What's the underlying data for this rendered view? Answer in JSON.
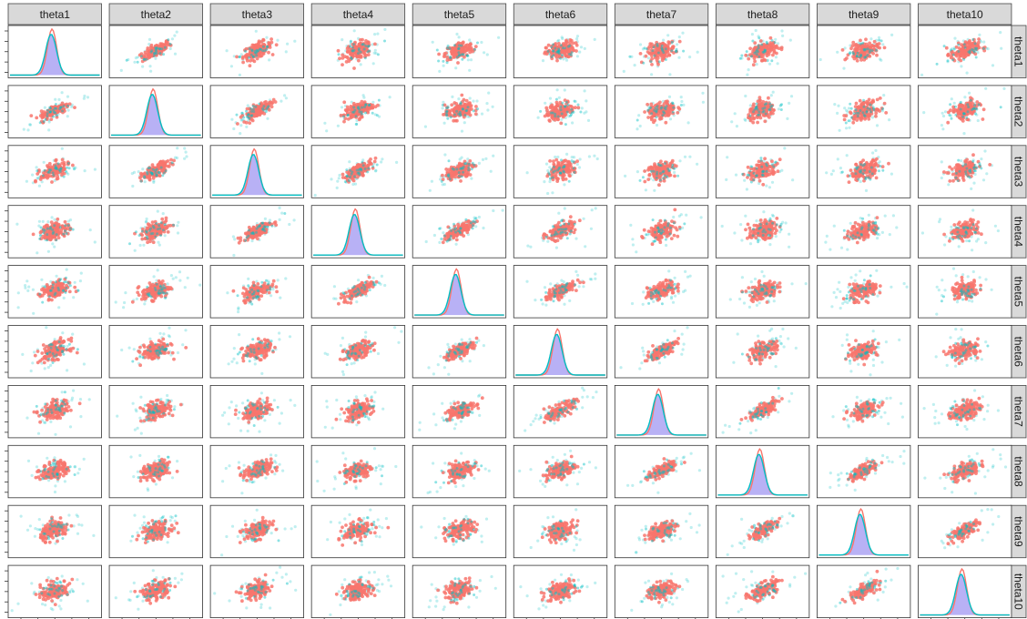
{
  "chart_data": {
    "type": "scatter",
    "layout": "pairs-matrix",
    "variables": [
      "theta1",
      "theta2",
      "theta3",
      "theta4",
      "theta5",
      "theta6",
      "theta7",
      "theta8",
      "theta9",
      "theta10"
    ],
    "diagonal": "density",
    "density_series_colors": [
      "#f8766d",
      "#00bfc4"
    ],
    "density_fill": "#b0a8f4",
    "scatter_colors": {
      "points": "#f8766d",
      "outliers": "#00bfc4"
    },
    "correlation_structure": "all pairs positively correlated; stronger for adjacent variables",
    "x_tick_count": 5,
    "y_tick_count": 5,
    "grid": false,
    "strip_background": "#d9d9d9"
  }
}
